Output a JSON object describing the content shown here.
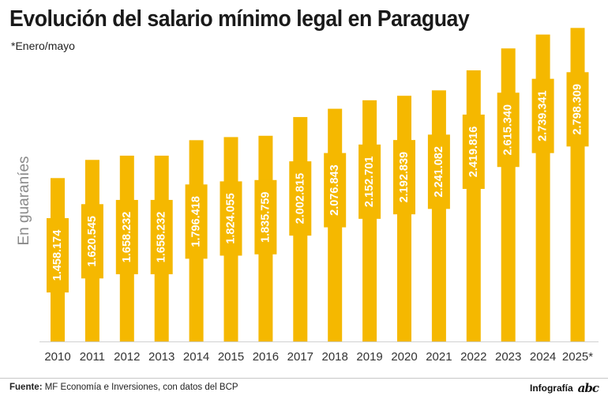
{
  "title": "Evolución del salario mínimo legal en Paraguay",
  "subtitle": "*Enero/mayo",
  "source_label": "Fuente:",
  "source_text": " MF Economía e Inversiones, con datos del BCP",
  "credit_label": "Infografía",
  "credit_logo": "abc",
  "chart_data": {
    "type": "bar",
    "ylabel": "En guaraníes",
    "categories": [
      "2010",
      "2011",
      "2012",
      "2013",
      "2014",
      "2015",
      "2016",
      "2017",
      "2018",
      "2019",
      "2020",
      "2021",
      "2022",
      "2023",
      "2024",
      "2025*"
    ],
    "values": [
      1458174,
      1620545,
      1658232,
      1658232,
      1796418,
      1824055,
      1835759,
      2002815,
      2076843,
      2152701,
      2192839,
      2241082,
      2419816,
      2615340,
      2739341,
      2798309
    ],
    "value_labels": [
      "1.458.174",
      "1.620.545",
      "1.658.232",
      "1.658.232",
      "1.796.418",
      "1.824.055",
      "1.835.759",
      "2.002.815",
      "2.076.843",
      "2.152.701",
      "2.192.839",
      "2.241.082",
      "2.419.816",
      "2.615.340",
      "2.739.341",
      "2.798.309"
    ],
    "ylim": [
      0,
      2850000
    ],
    "grid": false,
    "bar_color": "#F5B800",
    "label_text_color": "#ffffff"
  }
}
